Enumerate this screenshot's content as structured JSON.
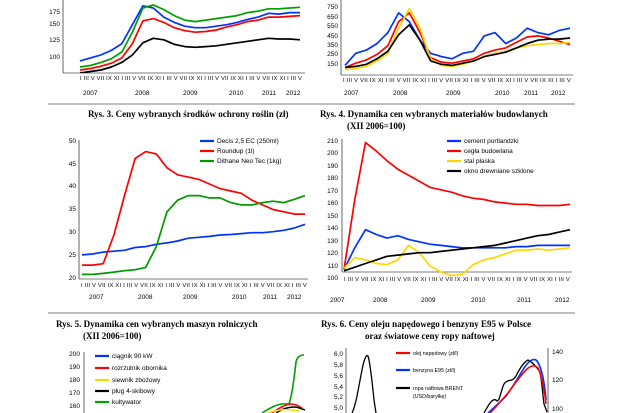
{
  "page": {
    "charts": [
      {
        "key": "c1",
        "title_line1": "",
        "title_line2": "",
        "yticks": [
          "100",
          "125",
          "150",
          "175"
        ],
        "years": [
          "2007",
          "2008",
          "2009",
          "2010",
          "2011",
          "2012"
        ],
        "month_ticks": "I III V VII IX XI I III V VII IX XI I III V VII IX XI I III V VII IX XI I III V VII IX XI I III V",
        "legend": []
      },
      {
        "key": "c2",
        "title_line1": "",
        "title_line2": "",
        "yticks": [
          "150",
          "250",
          "350",
          "450",
          "550",
          "650",
          "750"
        ],
        "years": [
          "2007",
          "2008",
          "2009",
          "2010",
          "2011",
          "2012"
        ],
        "month_ticks": "I III V VII IX XI I III V VII IX XI I III V VII IX XI I III V VII IX XI I III V VII IX XI I III V",
        "legend": []
      },
      {
        "key": "c3",
        "title_line1": "Rys. 3. Ceny wybranych środków ochrony roślin (zł)",
        "title_line2": "",
        "yticks": [
          "20",
          "25",
          "30",
          "35",
          "40",
          "45",
          "50"
        ],
        "years": [
          "2007",
          "2008",
          "2009",
          "2010",
          "2011",
          "2012"
        ],
        "month_ticks": "I III V VII IX XI I III V VII IX XI I III V VII IX XI I III V VII IX XI I III V VII IX XI I III V",
        "legend": [
          "Decis 2,5 EC (250ml)",
          "Roundup (1l)",
          "Dithane Neo Tec (1kg)"
        ]
      },
      {
        "key": "c4",
        "title_line1": "Rys. 4. Dynamika cen wybranych materiałów budowlanych",
        "title_line2": "(XII 2006=100)",
        "yticks": [
          "100",
          "110",
          "120",
          "130",
          "140",
          "150",
          "160",
          "170",
          "180",
          "190",
          "200",
          "210"
        ],
        "years": [
          "2007",
          "2008",
          "2009",
          "2010",
          "2011",
          "2012"
        ],
        "month_ticks": "I III V VII IX XI I III V VII IX XI I III V VII IX XI I III V VII IX XI I III V VII IX XI I III V",
        "legend": [
          "cement portlandzki",
          "cegła budowlana",
          "stal płaska",
          "okno drewniane szklone"
        ]
      },
      {
        "key": "c5",
        "title_line1": "Rys. 5. Dynamika cen wybranych maszyn rolniczych",
        "title_line2": "(XII 2006=100)",
        "yticks": [
          "160",
          "170",
          "180",
          "190",
          "200"
        ],
        "legend": [
          "ciągnik 90 kW",
          "rozrzutnik obornika",
          "siewnik zbożowy",
          "pług 4-skibowy",
          "kultywator"
        ]
      },
      {
        "key": "c6",
        "title_line1": "Rys. 6. Ceny oleju napędowego i benzyny E95 w Polsce",
        "title_line2": "oraz światowe ceny ropy naftowej",
        "yticks_left": [
          "5,0",
          "5,2",
          "5,4",
          "5,6",
          "5,8",
          "6,0"
        ],
        "yticks_right": [
          "100",
          "120",
          "140"
        ],
        "legend": [
          "olej napędowy (zł/l)",
          "benzyna E95 (zł/l)",
          "ropa naftowa BRENT",
          "(USD/baryłkę)"
        ]
      }
    ]
  },
  "chart_data": [
    {
      "type": "line",
      "title": "",
      "x": [
        "2007-01",
        "2007-04",
        "2007-07",
        "2007-10",
        "2008-01",
        "2008-04",
        "2008-07",
        "2008-10",
        "2009-01",
        "2009-04",
        "2009-07",
        "2009-10",
        "2010-01",
        "2010-04",
        "2010-07",
        "2010-10",
        "2011-01",
        "2011-04",
        "2011-07",
        "2011-10",
        "2012-01",
        "2012-04"
      ],
      "ylim": [
        100,
        190
      ],
      "series": [
        {
          "name": "",
          "color": "#0033ff",
          "values": [
            112,
            116,
            120,
            126,
            135,
            160,
            185,
            182,
            170,
            163,
            158,
            156,
            156,
            158,
            160,
            163,
            167,
            170,
            175,
            174,
            176,
            176
          ]
        },
        {
          "name": "",
          "color": "#ff0000",
          "values": [
            100,
            102,
            105,
            109,
            116,
            135,
            165,
            168,
            163,
            156,
            152,
            150,
            151,
            153,
            157,
            160,
            164,
            166,
            170,
            170,
            171,
            172
          ]
        },
        {
          "name": "",
          "color": "#00a000",
          "values": [
            104,
            106,
            110,
            115,
            124,
            150,
            182,
            186,
            180,
            172,
            166,
            164,
            166,
            168,
            170,
            172,
            176,
            178,
            181,
            181,
            182,
            183
          ]
        },
        {
          "name": "",
          "color": "#000000",
          "values": [
            96,
            98,
            100,
            104,
            110,
            120,
            136,
            142,
            140,
            134,
            131,
            130,
            131,
            132,
            134,
            136,
            138,
            140,
            142,
            141,
            141,
            140
          ]
        }
      ]
    },
    {
      "type": "line",
      "title": "",
      "x": [
        "2007-01",
        "2007-04",
        "2007-07",
        "2007-10",
        "2008-01",
        "2008-04",
        "2008-07",
        "2008-10",
        "2009-01",
        "2009-04",
        "2009-07",
        "2009-10",
        "2010-01",
        "2010-04",
        "2010-07",
        "2010-10",
        "2011-01",
        "2011-04",
        "2011-07",
        "2011-10",
        "2012-01",
        "2012-04"
      ],
      "ylim": [
        150,
        800
      ],
      "series": [
        {
          "name": "",
          "color": "#0033ff",
          "values": [
            220,
            330,
            360,
            420,
            520,
            700,
            620,
            450,
            330,
            300,
            280,
            330,
            350,
            490,
            520,
            420,
            470,
            560,
            520,
            500,
            540,
            560
          ]
        },
        {
          "name": "",
          "color": "#ff0000",
          "values": [
            200,
            240,
            270,
            320,
            400,
            620,
            700,
            520,
            290,
            250,
            240,
            260,
            280,
            330,
            360,
            380,
            430,
            480,
            490,
            470,
            440,
            410
          ]
        },
        {
          "name": "",
          "color": "#ffd700",
          "values": [
            180,
            190,
            210,
            260,
            330,
            560,
            740,
            560,
            280,
            220,
            210,
            230,
            260,
            300,
            330,
            350,
            380,
            400,
            410,
            420,
            420,
            430
          ]
        },
        {
          "name": "",
          "color": "#000000",
          "values": [
            200,
            210,
            230,
            280,
            350,
            500,
            590,
            450,
            260,
            230,
            220,
            240,
            260,
            300,
            320,
            340,
            380,
            420,
            450,
            460,
            460,
            470
          ]
        }
      ]
    },
    {
      "type": "line",
      "title": "Rys. 3. Ceny wybranych środków ochrony roślin (zł)",
      "x": [
        "2007-01",
        "2007-04",
        "2007-07",
        "2007-10",
        "2008-01",
        "2008-04",
        "2008-07",
        "2008-10",
        "2009-01",
        "2009-04",
        "2009-07",
        "2009-10",
        "2010-01",
        "2010-04",
        "2010-07",
        "2010-10",
        "2011-01",
        "2011-04",
        "2011-07",
        "2011-10",
        "2012-01",
        "2012-04"
      ],
      "ylim": [
        20,
        50
      ],
      "series": [
        {
          "name": "Decis 2,5 EC (250ml)",
          "color": "#0033ff",
          "values": [
            25.2,
            25.4,
            25.8,
            26.0,
            26.2,
            26.8,
            27.0,
            27.5,
            27.8,
            28.2,
            28.8,
            29.0,
            29.2,
            29.5,
            29.6,
            29.8,
            30.0,
            30.0,
            30.2,
            30.5,
            31.0,
            31.8
          ]
        },
        {
          "name": "Roundup (1l)",
          "color": "#ff0000",
          "values": [
            23.0,
            23.0,
            23.3,
            29.5,
            38.0,
            46.0,
            47.5,
            47.0,
            44.0,
            42.5,
            42.0,
            41.5,
            40.5,
            39.5,
            39.0,
            38.5,
            37.0,
            36.0,
            35.0,
            34.5,
            34.0,
            34.0
          ]
        },
        {
          "name": "Dithane Neo Tec (1kg)",
          "color": "#009900",
          "values": [
            21.0,
            21.0,
            21.2,
            21.5,
            21.8,
            22.0,
            22.5,
            27.0,
            34.5,
            37.0,
            38.0,
            38.0,
            37.5,
            37.5,
            36.5,
            36.0,
            36.0,
            36.5,
            36.8,
            36.5,
            37.2,
            38.0
          ]
        }
      ]
    },
    {
      "type": "line",
      "title": "Rys. 4. Dynamika cen wybranych materiałów budowlanych (XII 2006=100)",
      "x": [
        "2007-01",
        "2007-04",
        "2007-07",
        "2007-10",
        "2008-01",
        "2008-04",
        "2008-07",
        "2008-10",
        "2009-01",
        "2009-04",
        "2009-07",
        "2009-10",
        "2010-01",
        "2010-04",
        "2010-07",
        "2010-10",
        "2011-01",
        "2011-04",
        "2011-07",
        "2011-10",
        "2012-01",
        "2012-04"
      ],
      "ylim": [
        100,
        210
      ],
      "series": [
        {
          "name": "cement portlandzki",
          "color": "#0033ff",
          "values": [
            102,
            120,
            135,
            131,
            128,
            130,
            127,
            125,
            123,
            122,
            121,
            120,
            120,
            120,
            120,
            120,
            121,
            121,
            122,
            122,
            122,
            122
          ]
        },
        {
          "name": "cegła budowlana",
          "color": "#ff0000",
          "values": [
            102,
            160,
            207,
            200,
            192,
            185,
            180,
            175,
            170,
            168,
            166,
            163,
            161,
            160,
            158,
            157,
            156,
            156,
            155,
            155,
            155,
            156
          ]
        },
        {
          "name": "stal płaska",
          "color": "#ffd700",
          "values": [
            103,
            112,
            110,
            107,
            106,
            110,
            122,
            116,
            105,
            100,
            97,
            98,
            106,
            110,
            112,
            115,
            118,
            118,
            119,
            118,
            119,
            120
          ]
        },
        {
          "name": "okno drewniane szklone",
          "color": "#000000",
          "values": [
            101,
            104,
            107,
            110,
            113,
            114,
            115,
            116,
            116,
            117,
            118,
            119,
            120,
            121,
            122,
            124,
            126,
            128,
            130,
            131,
            133,
            135
          ]
        }
      ]
    },
    {
      "type": "line",
      "title": "Rys. 5. Dynamika cen wybranych maszyn rolniczych (XII 2006=100)",
      "ylim": [
        155,
        200
      ],
      "series": [
        {
          "name": "ciągnik 90 kW",
          "color": "#0033ff",
          "values": []
        },
        {
          "name": "rozrzutnik obornika",
          "color": "#ff0000",
          "values": []
        },
        {
          "name": "siewnik zbożowy",
          "color": "#ffd700",
          "values": []
        },
        {
          "name": "pług 4-skibowy",
          "color": "#000000",
          "values": []
        },
        {
          "name": "kultywator",
          "color": "#00a000",
          "values": []
        }
      ]
    },
    {
      "type": "line",
      "title": "Rys. 6. Ceny oleju napędowego i benzyny E95 w Polsce oraz światowe ceny ropy naftowej",
      "ylim": [
        5.0,
        6.1
      ],
      "y2lim": [
        95,
        145
      ],
      "series": [
        {
          "name": "olej napędowy (zł/l)",
          "color": "#ff0000",
          "axis": "left",
          "values": []
        },
        {
          "name": "benzyna E95 (zł/l)",
          "color": "#0033ff",
          "axis": "left",
          "values": []
        },
        {
          "name": "ropa naftowa BRENT (USD/baryłkę)",
          "color": "#000000",
          "axis": "right",
          "values": []
        }
      ]
    }
  ]
}
